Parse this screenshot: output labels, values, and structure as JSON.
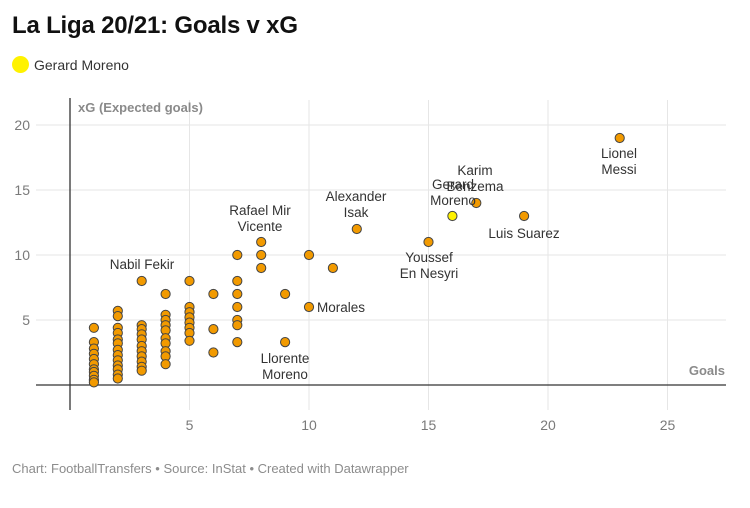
{
  "title": "La Liga 20/21: Goals v xG",
  "legend": {
    "label": "Gerard Moreno",
    "color": "#fff200"
  },
  "footer": "Chart: FootballTransfers • Source: InStat • Created with Datawrapper",
  "colors": {
    "point": "#f29a00",
    "highlight": "#fff200",
    "point_stroke": "#444444",
    "grid": "#e6e6e6",
    "axis": "#333333"
  },
  "chart_data": {
    "type": "scatter",
    "title": "La Liga 20/21: Goals v xG",
    "xlabel": "Goals",
    "ylabel": "xG (Expected goals)",
    "xlim": [
      -1.5,
      27.5
    ],
    "ylim": [
      -2,
      21
    ],
    "x_ticks": [
      5,
      10,
      15,
      20,
      25
    ],
    "y_ticks": [
      5,
      10,
      15,
      20
    ],
    "grid": true,
    "legend": [
      "Gerard Moreno"
    ],
    "labeled_points": [
      {
        "name": "Lionel Messi",
        "goals": 23,
        "xg": 19.0
      },
      {
        "name": "Luis Suarez",
        "goals": 19,
        "xg": 13.0
      },
      {
        "name": "Karim Benzema",
        "goals": 17,
        "xg": 14.0
      },
      {
        "name": "Gerard Moreno",
        "goals": 16,
        "xg": 13.0,
        "highlight": true
      },
      {
        "name": "Youssef En Nesyri",
        "goals": 15,
        "xg": 11.0
      },
      {
        "name": "Alexander Isak",
        "goals": 12,
        "xg": 12.0
      },
      {
        "name": "Morales",
        "goals": 10,
        "xg": 6.0
      },
      {
        "name": "Llorente Moreno",
        "goals": 9,
        "xg": 3.3
      },
      {
        "name": "Rafael Mir Vicente",
        "goals": 8,
        "xg": 11.0
      },
      {
        "name": "Nabil Fekir",
        "goals": 3,
        "xg": 8.0
      }
    ],
    "points": [
      [
        1,
        4.4
      ],
      [
        1,
        3.3
      ],
      [
        1,
        2.8
      ],
      [
        1,
        2.4
      ],
      [
        1,
        2.0
      ],
      [
        1,
        1.6
      ],
      [
        1,
        1.2
      ],
      [
        1,
        1.0
      ],
      [
        1,
        0.7
      ],
      [
        1,
        0.4
      ],
      [
        1,
        0.2
      ],
      [
        2,
        5.7
      ],
      [
        2,
        5.3
      ],
      [
        2,
        4.4
      ],
      [
        2,
        4.0
      ],
      [
        2,
        3.5
      ],
      [
        2,
        3.2
      ],
      [
        2,
        2.7
      ],
      [
        2,
        2.3
      ],
      [
        2,
        1.9
      ],
      [
        2,
        1.5
      ],
      [
        2,
        1.2
      ],
      [
        2,
        0.8
      ],
      [
        2,
        0.5
      ],
      [
        3,
        8.0
      ],
      [
        3,
        4.6
      ],
      [
        3,
        4.3
      ],
      [
        3,
        3.9
      ],
      [
        3,
        3.5
      ],
      [
        3,
        3.0
      ],
      [
        3,
        2.6
      ],
      [
        3,
        2.2
      ],
      [
        3,
        1.8
      ],
      [
        3,
        1.4
      ],
      [
        3,
        1.1
      ],
      [
        4,
        7.0
      ],
      [
        4,
        5.4
      ],
      [
        4,
        5.0
      ],
      [
        4,
        4.6
      ],
      [
        4,
        4.2
      ],
      [
        4,
        3.6
      ],
      [
        4,
        3.2
      ],
      [
        4,
        2.6
      ],
      [
        4,
        2.2
      ],
      [
        4,
        1.6
      ],
      [
        5,
        8.0
      ],
      [
        5,
        6.0
      ],
      [
        5,
        5.6
      ],
      [
        5,
        5.2
      ],
      [
        5,
        4.8
      ],
      [
        5,
        4.4
      ],
      [
        5,
        4.0
      ],
      [
        5,
        3.4
      ],
      [
        6,
        7.0
      ],
      [
        6,
        4.3
      ],
      [
        6,
        2.5
      ],
      [
        7,
        10.0
      ],
      [
        7,
        8.0
      ],
      [
        7,
        7.0
      ],
      [
        7,
        6.0
      ],
      [
        7,
        5.0
      ],
      [
        7,
        4.6
      ],
      [
        7,
        3.3
      ],
      [
        8,
        11.0
      ],
      [
        8,
        10.0
      ],
      [
        8,
        9.0
      ],
      [
        9,
        7.0
      ],
      [
        9,
        3.3
      ],
      [
        10,
        10.0
      ],
      [
        10,
        6.0
      ],
      [
        11,
        9.0
      ],
      [
        12,
        12.0
      ],
      [
        15,
        11.0
      ],
      [
        16,
        13.0
      ],
      [
        17,
        14.0
      ],
      [
        19,
        13.0
      ],
      [
        23,
        19.0
      ]
    ]
  }
}
